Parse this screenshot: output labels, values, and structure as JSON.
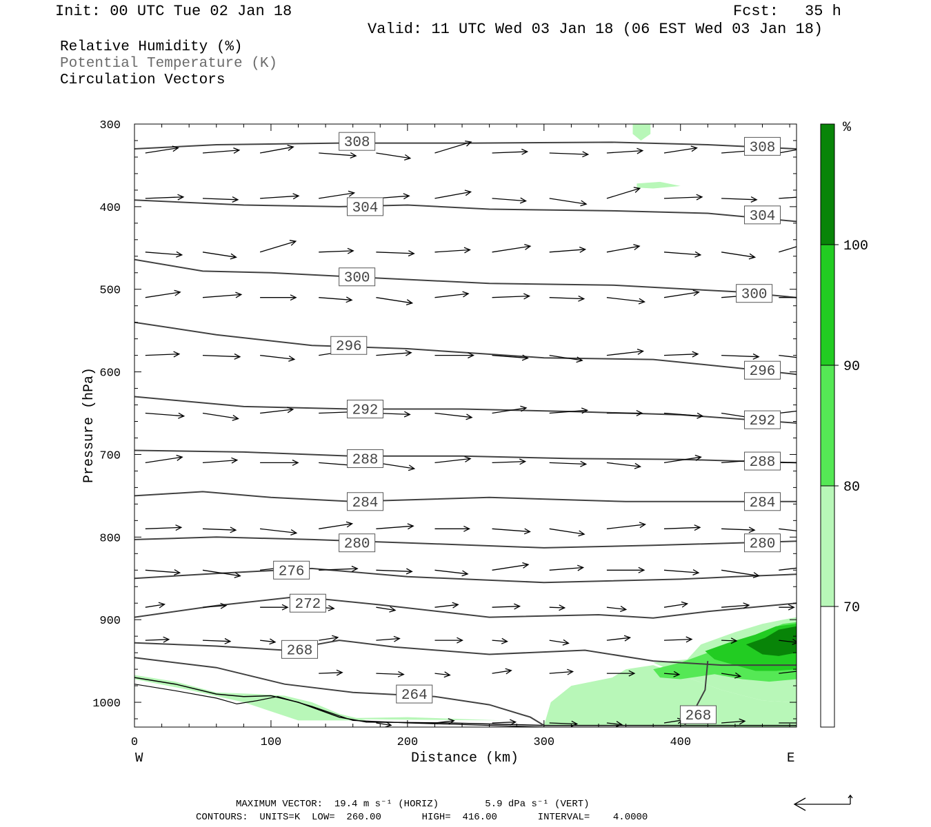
{
  "header": {
    "init": "Init: 00 UTC Tue 02 Jan 18",
    "fcst_label": "Fcst:",
    "fcst_value": "35 h",
    "valid": "Valid: 11 UTC Wed 03 Jan 18 (06 EST Wed 03 Jan 18)"
  },
  "legend": {
    "rh": "Relative Humidity (%)",
    "theta": "Potential Temperature (K)",
    "vectors": "Circulation Vectors"
  },
  "footer": {
    "max_vector": "MAXIMUM VECTOR:  19.4 m s⁻¹ (HORIZ)        5.9 dPa s⁻¹ (VERT)",
    "contours": "CONTOURS:  UNITS=K  LOW=  260.00       HIGH=  416.00       INTERVAL=    4.0000"
  },
  "colors": {
    "rh70": "#b8f7b8",
    "rh80": "#55e855",
    "rh90": "#22cc22",
    "rh100": "#088408",
    "contour": "#404040",
    "vector": "#000000"
  },
  "chart_data": {
    "type": "area",
    "xlabel": "Distance (km)",
    "ylabel": "Pressure (hPa)",
    "x_ticks": [
      0,
      100,
      200,
      300,
      400
    ],
    "y_ticks": [
      300,
      400,
      500,
      600,
      700,
      800,
      900,
      1000
    ],
    "xlim": [
      0,
      485
    ],
    "ylim": [
      1030,
      300
    ],
    "x_end_labels": {
      "left": "W",
      "right": "E"
    },
    "colorbar": {
      "unit": "%",
      "levels": [
        70,
        80,
        90,
        100
      ]
    },
    "theta_contours": [
      {
        "level": 308,
        "label": "308",
        "points": [
          [
            0,
            330
          ],
          [
            60,
            325
          ],
          [
            150,
            323
          ],
          [
            250,
            323
          ],
          [
            350,
            322
          ],
          [
            420,
            325
          ],
          [
            485,
            330
          ]
        ]
      },
      {
        "level": 304,
        "label": "304",
        "points": [
          [
            0,
            392
          ],
          [
            80,
            398
          ],
          [
            150,
            400
          ],
          [
            200,
            398
          ],
          [
            260,
            403
          ],
          [
            350,
            405
          ],
          [
            420,
            408
          ],
          [
            485,
            418
          ]
        ]
      },
      {
        "level": 300,
        "label": "300",
        "points": [
          [
            0,
            464
          ],
          [
            50,
            478
          ],
          [
            100,
            480
          ],
          [
            160,
            485
          ],
          [
            260,
            493
          ],
          [
            350,
            495
          ],
          [
            440,
            503
          ],
          [
            485,
            510
          ]
        ]
      },
      {
        "level": 296,
        "label": "296",
        "points": [
          [
            0,
            540
          ],
          [
            60,
            555
          ],
          [
            130,
            568
          ],
          [
            200,
            572
          ],
          [
            300,
            583
          ],
          [
            380,
            585
          ],
          [
            440,
            595
          ],
          [
            485,
            603
          ]
        ]
      },
      {
        "level": 292,
        "label": "292",
        "points": [
          [
            0,
            630
          ],
          [
            80,
            642
          ],
          [
            160,
            645
          ],
          [
            240,
            645
          ],
          [
            320,
            648
          ],
          [
            400,
            652
          ],
          [
            485,
            662
          ]
        ]
      },
      {
        "level": 288,
        "label": "288",
        "points": [
          [
            0,
            695
          ],
          [
            80,
            697
          ],
          [
            160,
            702
          ],
          [
            240,
            702
          ],
          [
            320,
            705
          ],
          [
            400,
            706
          ],
          [
            485,
            710
          ]
        ]
      },
      {
        "level": 284,
        "label": "284",
        "points": [
          [
            0,
            750
          ],
          [
            50,
            745
          ],
          [
            100,
            752
          ],
          [
            160,
            757
          ],
          [
            260,
            752
          ],
          [
            360,
            757
          ],
          [
            485,
            757
          ]
        ]
      },
      {
        "level": 280,
        "label": "280",
        "points": [
          [
            0,
            803
          ],
          [
            60,
            800
          ],
          [
            130,
            803
          ],
          [
            200,
            807
          ],
          [
            300,
            813
          ],
          [
            380,
            810
          ],
          [
            485,
            805
          ]
        ]
      },
      {
        "level": 276,
        "label": "276",
        "points": [
          [
            0,
            850
          ],
          [
            60,
            844
          ],
          [
            130,
            838
          ],
          [
            200,
            848
          ],
          [
            300,
            855
          ],
          [
            400,
            851
          ],
          [
            440,
            848
          ],
          [
            485,
            845
          ]
        ]
      },
      {
        "level": 272,
        "label": "272",
        "points": [
          [
            0,
            897
          ],
          [
            60,
            883
          ],
          [
            120,
            872
          ],
          [
            180,
            882
          ],
          [
            260,
            897
          ],
          [
            340,
            894
          ],
          [
            380,
            898
          ],
          [
            420,
            890
          ],
          [
            485,
            880
          ]
        ]
      },
      {
        "level": 268,
        "label": "268",
        "points": [
          [
            0,
            928
          ],
          [
            60,
            932
          ],
          [
            110,
            937
          ],
          [
            150,
            925
          ],
          [
            190,
            933
          ],
          [
            260,
            942
          ],
          [
            330,
            937
          ],
          [
            380,
            950
          ],
          [
            430,
            955
          ],
          [
            485,
            955
          ]
        ]
      },
      {
        "level": 264,
        "label": "264",
        "points": [
          [
            0,
            946
          ],
          [
            60,
            958
          ],
          [
            110,
            978
          ],
          [
            160,
            988
          ],
          [
            220,
            993
          ],
          [
            260,
            1003
          ],
          [
            290,
            1018
          ],
          [
            300,
            1028
          ]
        ]
      },
      {
        "level": 268,
        "label": "268",
        "points": [
          [
            420,
            950
          ],
          [
            418,
            985
          ],
          [
            410,
            1010
          ],
          [
            403,
            1028
          ]
        ]
      }
    ]
  }
}
